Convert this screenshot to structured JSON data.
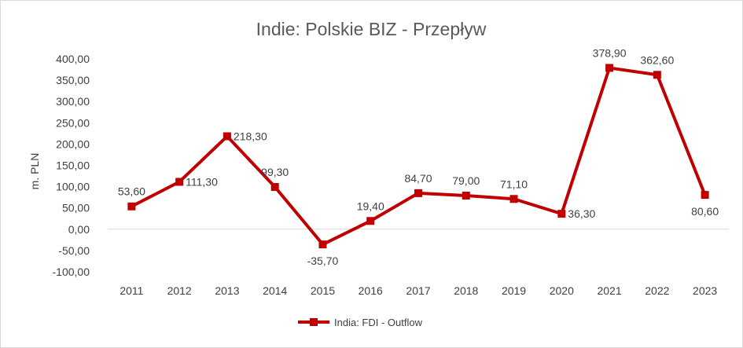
{
  "chart_data": {
    "type": "line",
    "title": "Indie: Polskie BIZ - Przepływ",
    "ylabel": "m. PLN",
    "xlabel": "",
    "categories": [
      "2011",
      "2012",
      "2013",
      "2014",
      "2015",
      "2016",
      "2017",
      "2018",
      "2019",
      "2020",
      "2021",
      "2022",
      "2023"
    ],
    "series": [
      {
        "name": "India: FDI - Outflow",
        "values": [
          53.6,
          111.3,
          218.3,
          99.3,
          -35.7,
          19.4,
          84.7,
          79.0,
          71.1,
          36.3,
          378.9,
          362.6,
          80.6
        ],
        "labels": [
          "53,60",
          "111,30",
          "218,30",
          "99,30",
          "-35,70",
          "19,40",
          "84,70",
          "79,00",
          "71,10",
          "36,30",
          "378,90",
          "362,60",
          "80,60"
        ],
        "color": "#c00000"
      }
    ],
    "ylim": [
      -100,
      400
    ],
    "ytick_step": 50,
    "ytick_labels": [
      "-100,00",
      "-50,00",
      "0,00",
      "50,00",
      "100,00",
      "150,00",
      "200,00",
      "250,00",
      "300,00",
      "350,00",
      "400,00"
    ],
    "grid": false,
    "zero_line": true,
    "legend": "bottom"
  }
}
